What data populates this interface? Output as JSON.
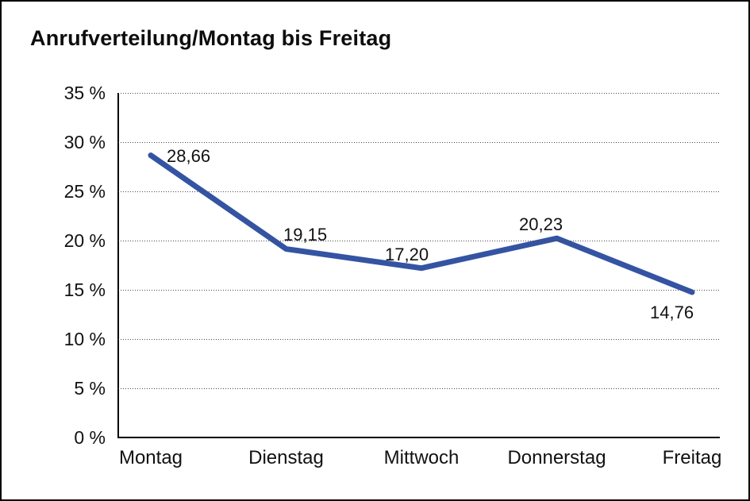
{
  "chart_data": {
    "type": "line",
    "title": "Anrufverteilung/Montag bis Freitag",
    "categories": [
      "Montag",
      "Dienstag",
      "Mittwoch",
      "Donnerstag",
      "Freitag"
    ],
    "values": [
      28.66,
      19.15,
      17.2,
      20.23,
      14.76
    ],
    "value_labels": [
      "28,66",
      "19,15",
      "17,20",
      "20,23",
      "14,76"
    ],
    "y_ticks": [
      "35 %",
      "30 %",
      "25 %",
      "20 %",
      "15 %",
      "10 %",
      "5 %",
      "0 %"
    ],
    "y_tick_values": [
      35,
      30,
      25,
      20,
      15,
      10,
      5,
      0
    ],
    "ylim": [
      0,
      35
    ],
    "xlabel": "",
    "ylabel": "",
    "grid": "horizontal-dotted",
    "legend": "none",
    "line_color": "#3454a3",
    "background_color": "#ffffff",
    "border_color": "#000000"
  }
}
